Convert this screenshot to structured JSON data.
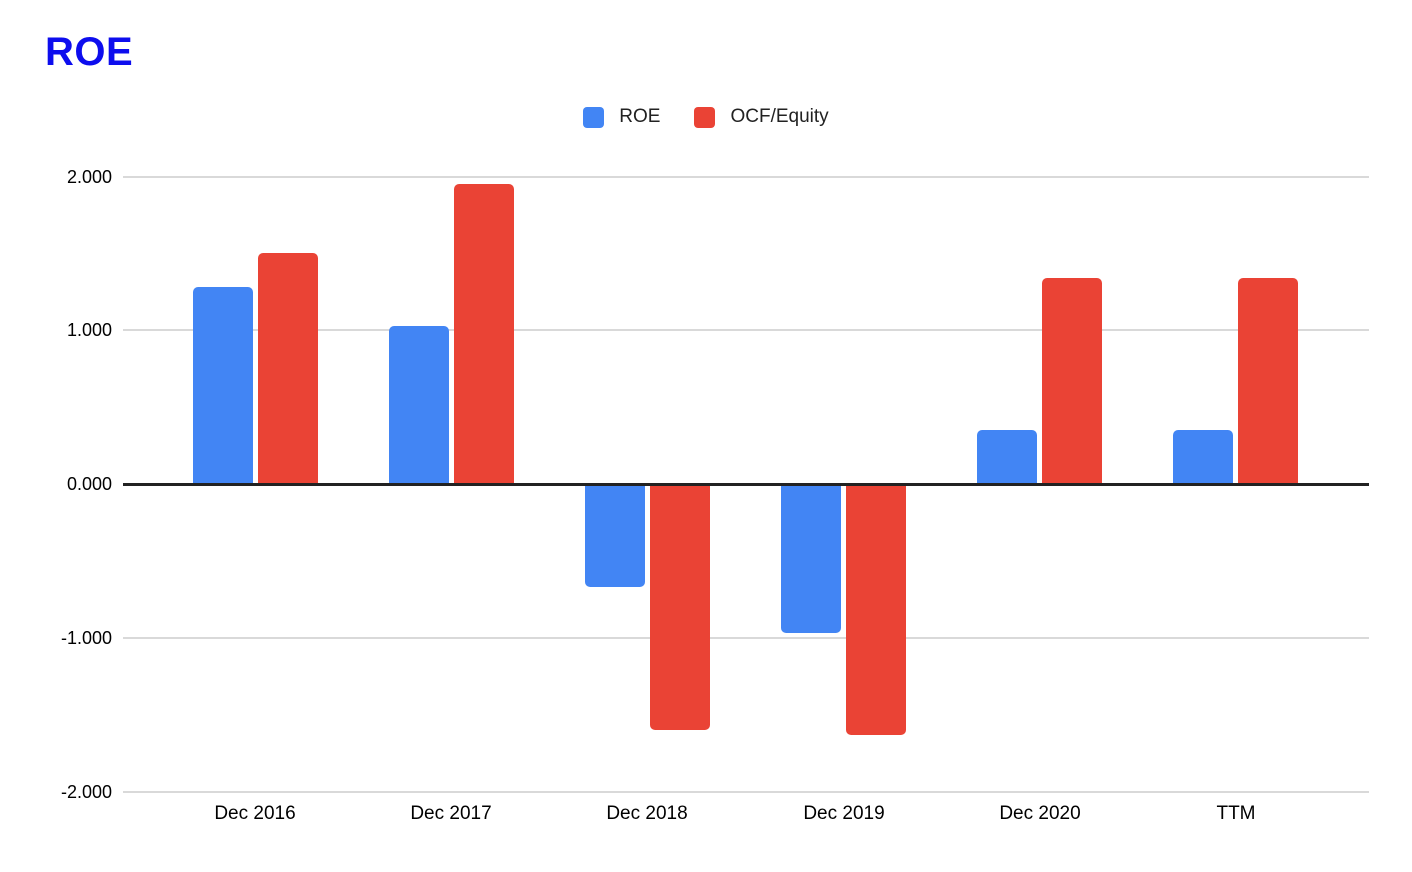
{
  "page": {
    "title": "ROE"
  },
  "colors": {
    "title": "#0d0dee",
    "roe_blue": "#4285F4",
    "ocf_red": "#EA4335",
    "grid": "#d9d9d9",
    "axis_line": "#222222",
    "axis_text": "#000000",
    "legend_text": "#222222"
  },
  "legend": {
    "position": "top-center",
    "items": [
      {
        "label": "ROE",
        "color": "#4285F4"
      },
      {
        "label": "OCF/Equity",
        "color": "#EA4335"
      }
    ]
  },
  "chart_data": {
    "type": "bar",
    "title": "ROE",
    "categories": [
      "Dec 2016",
      "Dec 2017",
      "Dec 2018",
      "Dec 2019",
      "Dec 2020",
      "TTM"
    ],
    "series": [
      {
        "name": "ROE",
        "color": "#4285F4",
        "values": [
          1.28,
          1.03,
          -0.67,
          -0.97,
          0.35,
          0.35
        ]
      },
      {
        "name": "OCF/Equity",
        "color": "#EA4335",
        "values": [
          1.5,
          1.95,
          -1.6,
          -1.63,
          1.34,
          1.34
        ]
      }
    ],
    "xlabel": "",
    "ylabel": "",
    "ylim": [
      -2.0,
      2.0
    ],
    "yticks": [
      2,
      1,
      0,
      -1,
      -2
    ],
    "ytick_labels": [
      "2.000",
      "1.000",
      "0.000",
      "-1.000",
      "-2.000"
    ],
    "grid": true,
    "legend_position": "top"
  }
}
